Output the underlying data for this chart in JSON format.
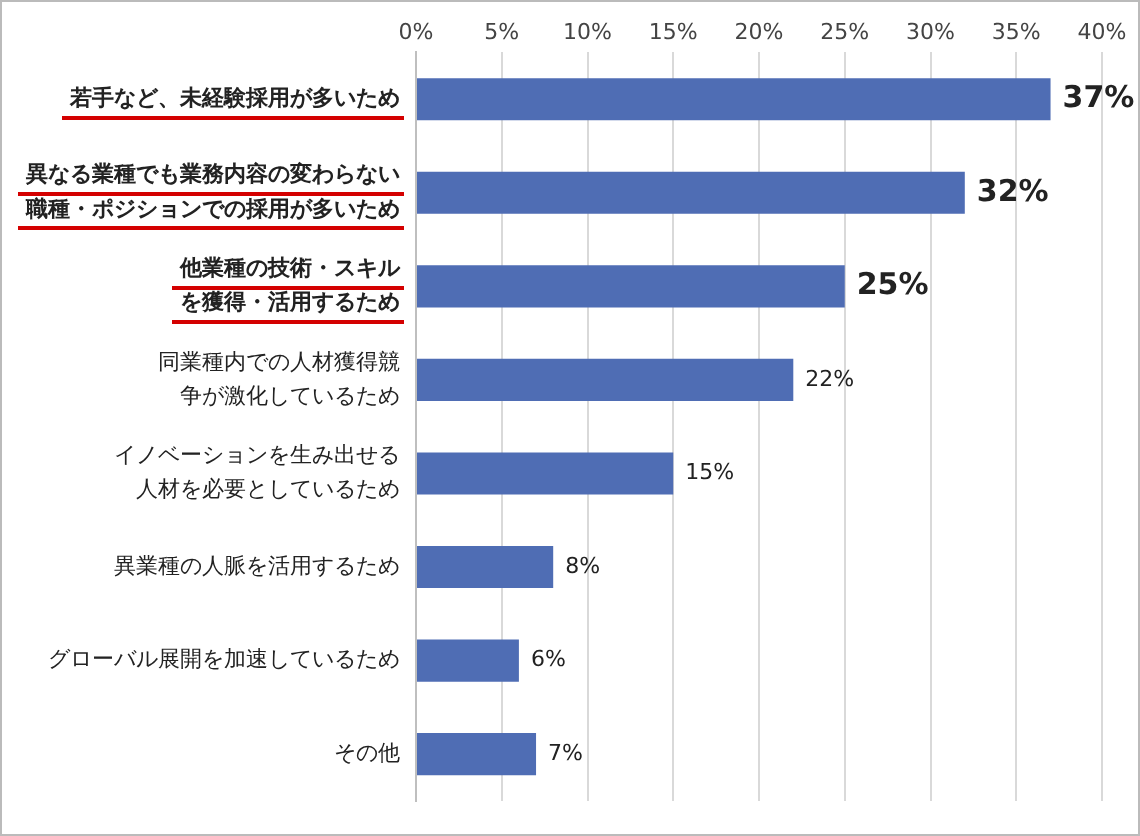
{
  "chart_data": {
    "type": "bar",
    "orientation": "horizontal",
    "categories": [
      "若手など、未経験採用が多いため",
      "異なる業種でも業務内容の変わらない職種・ポジションでの採用が多いため",
      "他業種の技術・スキルを獲得・活用するため",
      "同業種内での人材獲得競争が激化しているため",
      "イノベーションを生み出せる人材を必要としているため",
      "異業種の人脈を活用するため",
      "グローバル展開を加速しているため",
      "その他"
    ],
    "values": [
      37,
      32,
      25,
      22,
      15,
      8,
      6,
      7
    ],
    "value_labels": [
      "37%",
      "32%",
      "25%",
      "22%",
      "15%",
      "8%",
      "6%",
      "7%"
    ],
    "color": "#4f6db4",
    "xlim": [
      0,
      40
    ],
    "xticks": [
      {
        "value": 0,
        "label": "0%"
      },
      {
        "value": 5,
        "label": "5%"
      },
      {
        "value": 10,
        "label": "10%"
      },
      {
        "value": 15,
        "label": "15%"
      },
      {
        "value": 20,
        "label": "20%"
      },
      {
        "value": 25,
        "label": "25%"
      },
      {
        "value": 30,
        "label": "30%"
      },
      {
        "value": 35,
        "label": "35%"
      },
      {
        "value": 40,
        "label": "40%"
      }
    ],
    "grid": "x",
    "legend": false
  }
}
